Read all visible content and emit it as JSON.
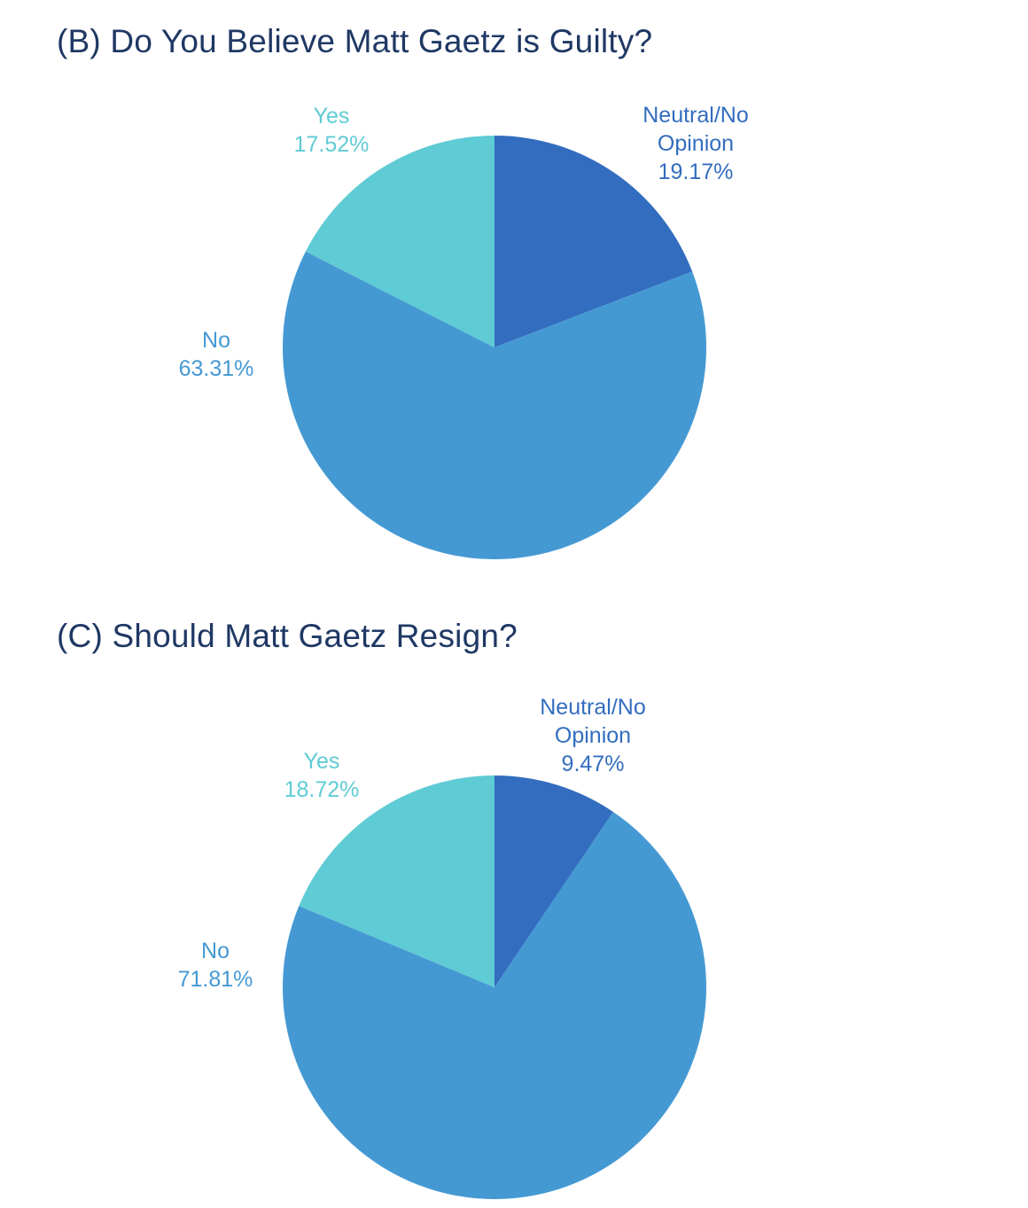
{
  "chart_data": [
    {
      "type": "pie",
      "title": "(B) Do You Believe Matt Gaetz is Guilty?",
      "slices": [
        {
          "name": "Neutral/No Opinion",
          "label_lines": [
            "Neutral/No",
            "Opinion"
          ],
          "value": 19.17,
          "value_label": "19.17%",
          "color": "#336dbf"
        },
        {
          "name": "No",
          "label_lines": [
            "No"
          ],
          "value": 63.31,
          "value_label": "63.31%",
          "color": "#4599d3"
        },
        {
          "name": "Yes",
          "label_lines": [
            "Yes"
          ],
          "value": 17.52,
          "value_label": "17.52%",
          "color": "#5fcbd4"
        }
      ]
    },
    {
      "type": "pie",
      "title": "(C) Should Matt Gaetz Resign?",
      "slices": [
        {
          "name": "Neutral/No Opinion",
          "label_lines": [
            "Neutral/No",
            "Opinion"
          ],
          "value": 9.47,
          "value_label": "9.47%",
          "color": "#336dbf"
        },
        {
          "name": "No",
          "label_lines": [
            "No"
          ],
          "value": 71.81,
          "value_label": "71.81%",
          "color": "#4599d3"
        },
        {
          "name": "Yes",
          "label_lines": [
            "Yes"
          ],
          "value": 18.72,
          "value_label": "18.72%",
          "color": "#5fcbd4"
        }
      ]
    }
  ]
}
